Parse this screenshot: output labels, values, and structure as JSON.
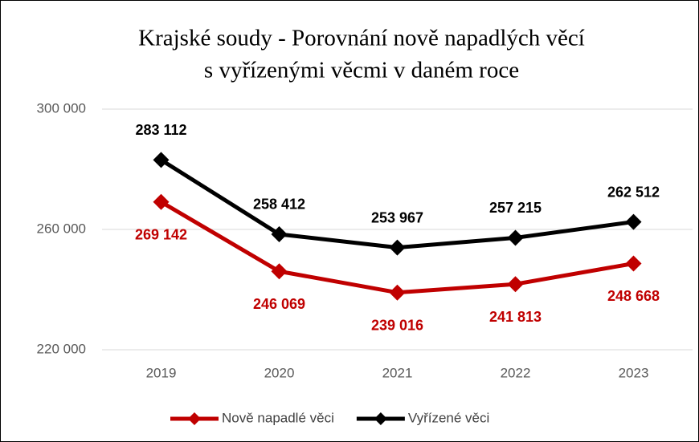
{
  "chart_data": {
    "type": "line",
    "title": [
      "Krajské soudy - Porovnání nově napadlých věcí",
      "s vyřízenými věcmi v daném roce"
    ],
    "categories": [
      "2019",
      "2020",
      "2021",
      "2022",
      "2023"
    ],
    "series": [
      {
        "name": "Nově napadlé věci",
        "color": "#c00000",
        "values": [
          269142,
          246069,
          239016,
          241813,
          248668
        ],
        "value_labels": [
          "269 142",
          "246 069",
          "239 016",
          "241 813",
          "248 668"
        ],
        "label_position": "below"
      },
      {
        "name": "Vyřízené věci",
        "color": "#000000",
        "values": [
          283112,
          258412,
          253967,
          257215,
          262512
        ],
        "value_labels": [
          "283 112",
          "258 412",
          "253 967",
          "257 215",
          "262 512"
        ],
        "label_position": "above"
      }
    ],
    "ylim": [
      220000,
      300000
    ],
    "yticks": [
      {
        "value": 220000,
        "label": "220 000"
      },
      {
        "value": 260000,
        "label": "260 000"
      },
      {
        "value": 300000,
        "label": "300 000"
      }
    ],
    "grid": true,
    "legend": "bottom"
  }
}
